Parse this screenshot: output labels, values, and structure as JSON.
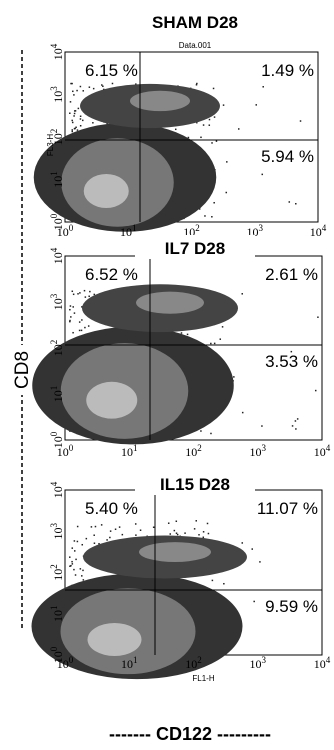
{
  "y_axis_title": "CD8",
  "x_axis_title": "------- CD122 ---------",
  "tick_base": "10",
  "tick_exponents": [
    "0",
    "1",
    "2",
    "3",
    "4"
  ],
  "panels": [
    {
      "title": "SHAM D28",
      "header": "Data.001",
      "y_label": "FL3-H",
      "quadrants": [
        "6.15 %",
        "1.49 %",
        "5.94 %"
      ]
    },
    {
      "title": "IL7 D28",
      "quadrants": [
        "6.52 %",
        "2.61 %",
        "3.53 %"
      ]
    },
    {
      "title": "IL15 D28",
      "x_label": "FL1-H",
      "quadrants": [
        "5.40 %",
        "11.07 %",
        "9.59 %"
      ]
    }
  ]
}
